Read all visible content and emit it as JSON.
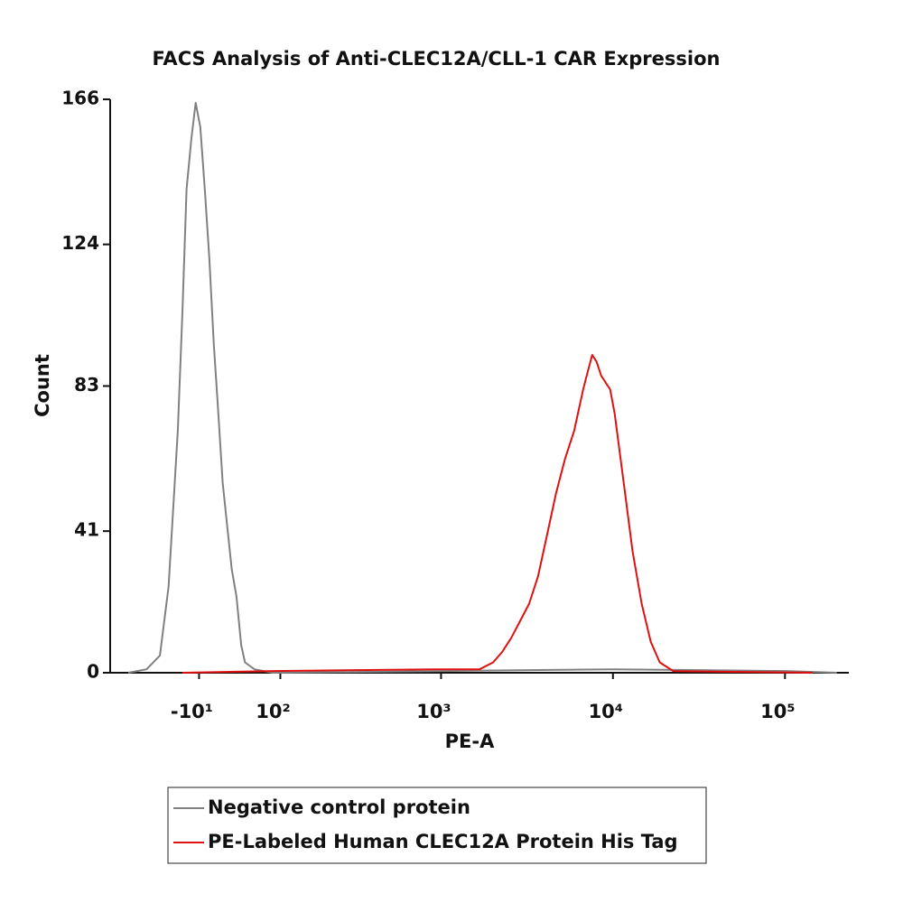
{
  "chart_data": {
    "type": "line",
    "title": "FACS Analysis of Anti-CLEC12A/CLL-1 CAR Expression",
    "x_label": "PE-A",
    "y_label": "Count",
    "xscale": "biexponential",
    "xlim": [
      -150,
      235000
    ],
    "xticks": [
      {
        "value": -10,
        "label": "-10¹"
      },
      {
        "value": 100,
        "label": "10²"
      },
      {
        "value": 1000,
        "label": "10³"
      },
      {
        "value": 10000,
        "label": "10⁴"
      },
      {
        "value": 100000,
        "label": "10⁵"
      }
    ],
    "ylim": [
      0,
      166
    ],
    "yticks": [
      0,
      41,
      83,
      124,
      166
    ],
    "grid": false,
    "legend": "bottom",
    "series": [
      {
        "name": "Negative control protein",
        "color": "#808080",
        "x": [
          -112,
          -80,
          -60,
          -48,
          -36,
          -30,
          -25,
          -19,
          -14,
          -8.5,
          -3.2,
          2.1,
          7.4,
          12.8,
          18,
          23.6,
          29,
          35,
          41,
          46,
          59,
          87,
          1000,
          10000,
          100000,
          200000
        ],
        "values": [
          0,
          1,
          5,
          25,
          70,
          105,
          140,
          155,
          165,
          158,
          140,
          120,
          95,
          75,
          55,
          42,
          30,
          22,
          8,
          3,
          1,
          0,
          0.5,
          1,
          0.5,
          0
        ]
      },
      {
        "name": "PE-Labeled Human CLEC12A Protein His Tag",
        "color": "#e01010",
        "x": [
          -30,
          87,
          916,
          1677,
          2011,
          2268,
          2558,
          2886,
          3256,
          3673,
          4144,
          4673,
          5273,
          5947,
          6709,
          7125,
          7570,
          8041,
          8540,
          9634,
          10233,
          11545,
          13024,
          14694,
          16574,
          18700,
          22387,
          43436,
          145112
        ],
        "values": [
          0,
          0.5,
          1,
          1,
          3,
          6,
          10,
          15,
          20,
          28,
          40,
          52,
          62,
          70,
          82,
          87,
          92,
          90,
          86,
          82,
          75,
          55,
          35,
          20,
          9,
          3,
          0.5,
          0.3,
          0
        ]
      }
    ]
  }
}
